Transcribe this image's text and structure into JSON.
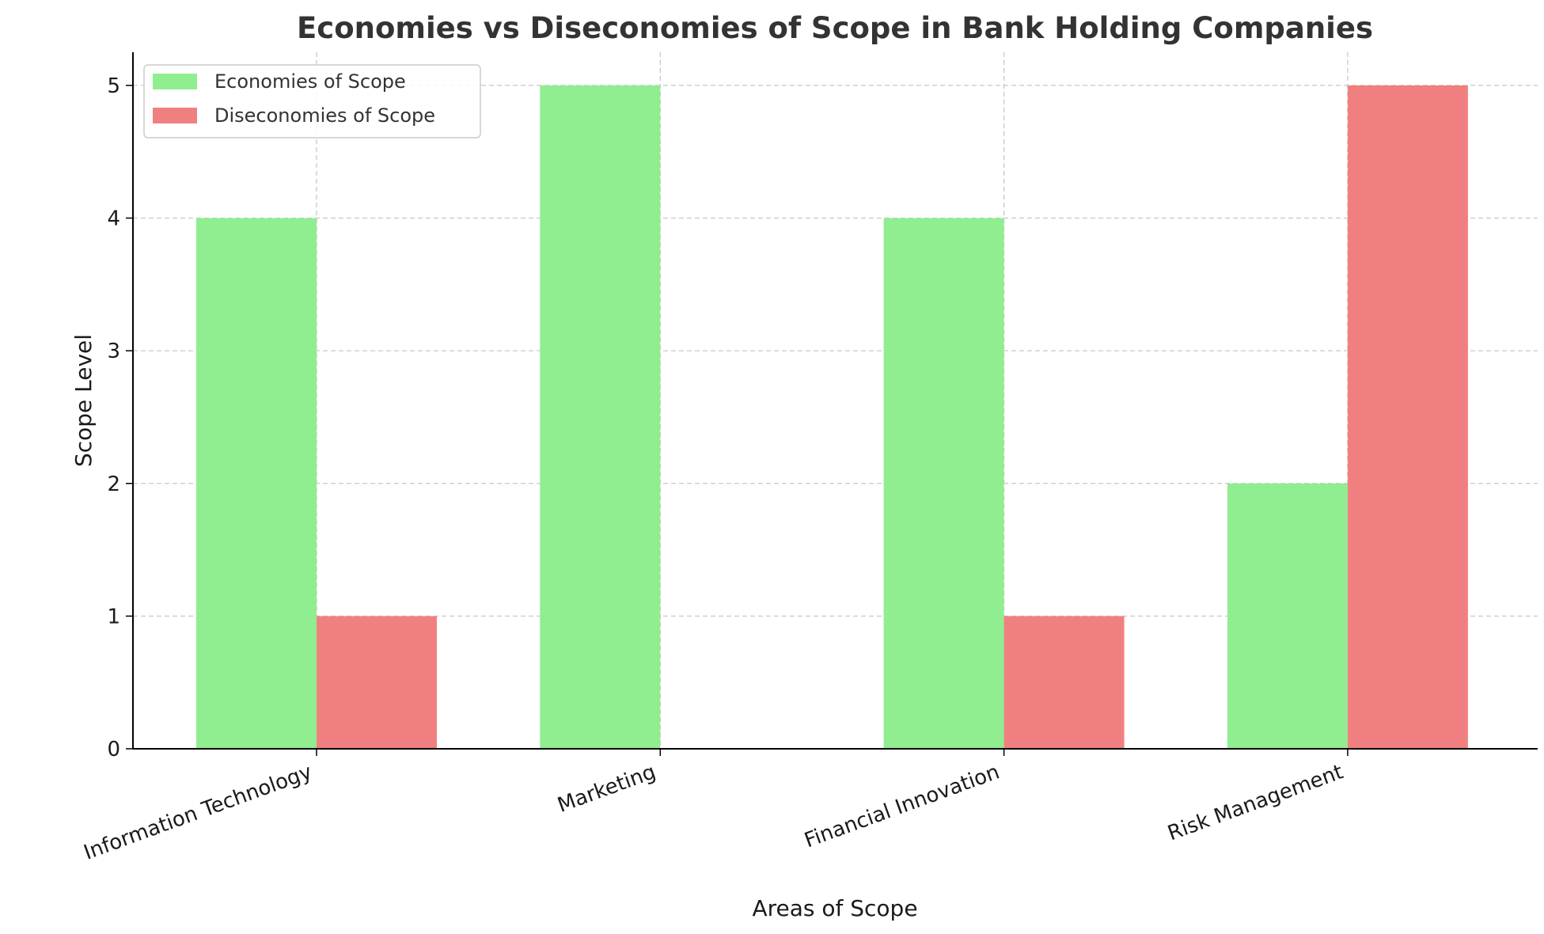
{
  "chart_data": {
    "type": "bar",
    "title": "Economies vs Diseconomies of Scope in Bank Holding Companies",
    "xlabel": "Areas of Scope",
    "ylabel": "Scope Level",
    "categories": [
      "Information Technology",
      "Marketing",
      "Financial Innovation",
      "Risk Management"
    ],
    "series": [
      {
        "name": "Economies of Scope",
        "values": [
          4,
          5,
          4,
          2
        ],
        "color": "#90ee90"
      },
      {
        "name": "Diseconomies of Scope",
        "values": [
          1,
          0,
          1,
          5
        ],
        "color": "#f08080"
      }
    ],
    "ylim": [
      0,
      5.25
    ],
    "yticks": [
      "0",
      "1",
      "2",
      "3",
      "4",
      "5"
    ],
    "grid": true,
    "legend_position": "top-left"
  }
}
